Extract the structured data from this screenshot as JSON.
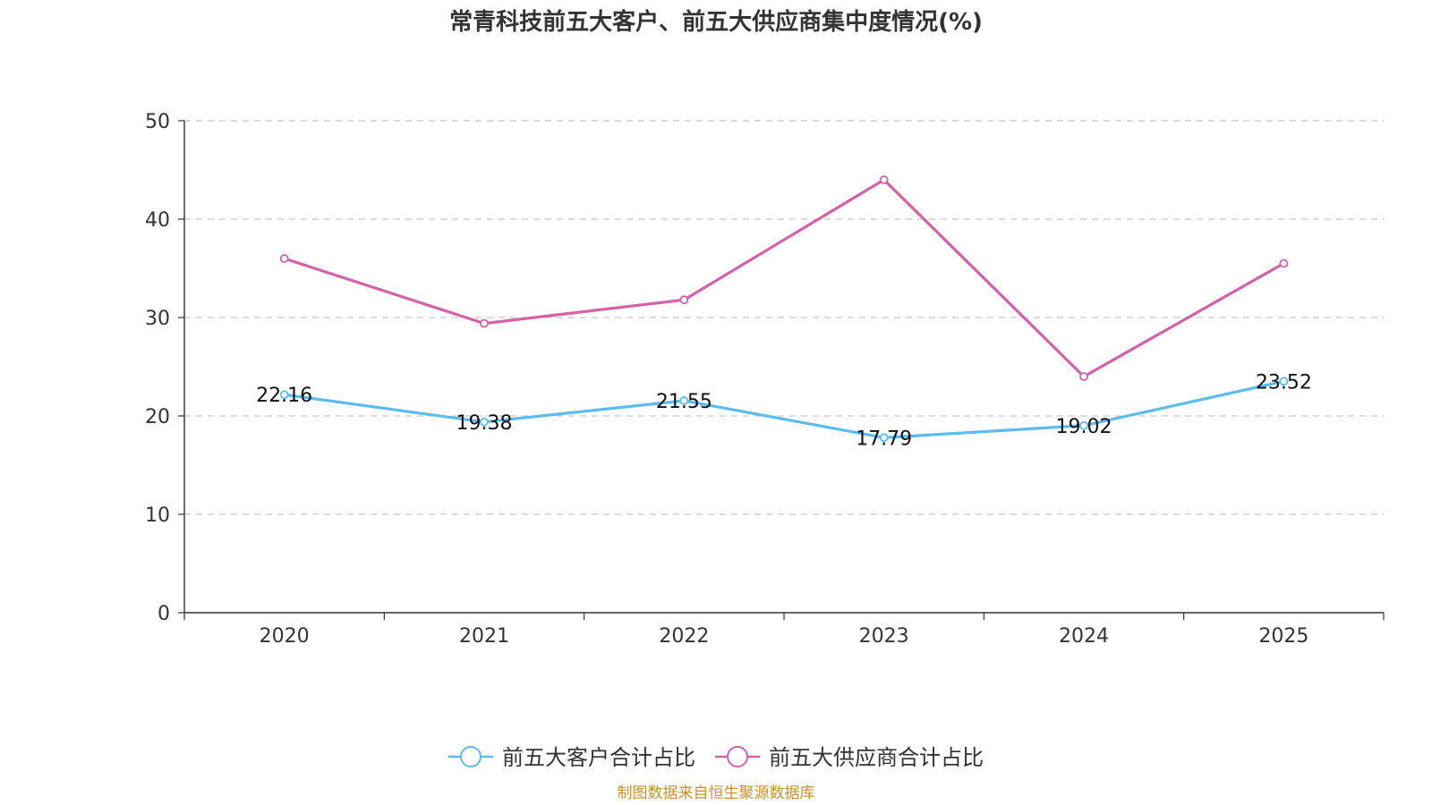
{
  "title": "常青科技前五大客户、前五大供应商集中度情况(%)",
  "source": "制图数据来自恒生聚源数据库",
  "colors": {
    "customers": "#5bbcf0",
    "suppliers": "#d462a8",
    "grid": "#c8c8c8",
    "axis": "#333333",
    "source": "#c8922a"
  },
  "chart_data": {
    "type": "line",
    "title": "常青科技前五大客户、前五大供应商集中度情况(%)",
    "categories": [
      "2020",
      "2021",
      "2022",
      "2023",
      "2024",
      "2025"
    ],
    "ylim": [
      0,
      50
    ],
    "yticks": [
      0,
      10,
      20,
      30,
      40,
      50
    ],
    "grid": true,
    "legend": "bottom-center",
    "series": [
      {
        "name": "前五大客户合计占比",
        "key": "customers",
        "values": [
          22.16,
          19.38,
          21.55,
          17.79,
          19.02,
          23.52
        ],
        "labels": [
          "22.16",
          "19.38",
          "21.55",
          "17.79",
          "19.02",
          "23.52"
        ],
        "show_labels": true
      },
      {
        "name": "前五大供应商合计占比",
        "key": "suppliers",
        "values": [
          36.0,
          29.4,
          31.8,
          44.0,
          24.0,
          35.5
        ],
        "show_labels": false
      }
    ]
  }
}
